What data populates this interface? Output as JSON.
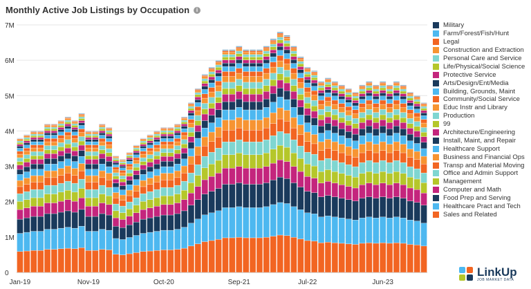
{
  "header": {
    "title": "Monthly Active Job Listings by Occupation",
    "info_icon_glyph": "i"
  },
  "logo": {
    "name": "LinkUp",
    "subtitle": "JOB MARKET DATA"
  },
  "chart_data": {
    "type": "bar",
    "stacked": true,
    "title": "Monthly Active Job Listings by Occupation",
    "xlabel": "",
    "ylabel": "",
    "ylim": [
      0,
      7000000
    ],
    "y_ticks": [
      0,
      1000000,
      2000000,
      3000000,
      4000000,
      5000000,
      6000000,
      7000000
    ],
    "y_tick_labels": [
      "0",
      "1M",
      "2M",
      "3M",
      "4M",
      "5M",
      "6M",
      "7M"
    ],
    "x_tick_labels": [
      {
        "index": 0,
        "label": "Jan-19"
      },
      {
        "index": 10,
        "label": "Nov-19"
      },
      {
        "index": 21,
        "label": "Oct-20"
      },
      {
        "index": 32,
        "label": "Sep-21"
      },
      {
        "index": 42,
        "label": "Jul-22"
      },
      {
        "index": 53,
        "label": "Jun-23"
      }
    ],
    "grid": true,
    "legend_position": "right",
    "categories": [
      "Jan-19",
      "Feb-19",
      "Mar-19",
      "Apr-19",
      "May-19",
      "Jun-19",
      "Jul-19",
      "Aug-19",
      "Sep-19",
      "Oct-19",
      "Nov-19",
      "Dec-19",
      "Jan-20",
      "Feb-20",
      "Mar-20",
      "Apr-20",
      "May-20",
      "Jun-20",
      "Jul-20",
      "Aug-20",
      "Sep-20",
      "Oct-20",
      "Nov-20",
      "Dec-20",
      "Jan-21",
      "Feb-21",
      "Mar-21",
      "Apr-21",
      "May-21",
      "Jun-21",
      "Jul-21",
      "Aug-21",
      "Sep-21",
      "Oct-21",
      "Nov-21",
      "Dec-21",
      "Jan-22",
      "Feb-22",
      "Mar-22",
      "Apr-22",
      "May-22",
      "Jun-22",
      "Jul-22",
      "Aug-22",
      "Sep-22",
      "Oct-22",
      "Nov-22",
      "Dec-22",
      "Jan-23",
      "Feb-23",
      "Mar-23",
      "Apr-23",
      "May-23",
      "Jun-23",
      "Jul-23",
      "Aug-23",
      "Sep-23",
      "Oct-23",
      "Nov-23",
      "Dec-23"
    ],
    "totals": [
      3800000,
      3900000,
      4000000,
      4000000,
      4200000,
      4200000,
      4300000,
      4400000,
      4300000,
      4500000,
      4000000,
      4000000,
      4200000,
      4100000,
      3300000,
      3200000,
      3400000,
      3600000,
      3800000,
      3900000,
      4000000,
      4100000,
      4100000,
      4200000,
      4400000,
      4800000,
      5200000,
      5600000,
      5800000,
      6000000,
      6300000,
      6300000,
      6400000,
      6300000,
      6300000,
      6300000,
      6400000,
      6600000,
      6800000,
      6700000,
      6400000,
      6100000,
      5800000,
      5700000,
      5400000,
      5500000,
      5400000,
      5300000,
      5200000,
      5100000,
      5300000,
      5400000,
      5300000,
      5400000,
      5300000,
      5400000,
      5300000,
      5100000,
      5000000,
      4800000
    ],
    "series": [
      {
        "name": "Sales and Related",
        "color": "#f26522",
        "share": 0.155
      },
      {
        "name": "Healthcare Pract and Tech",
        "color": "#4db8f0",
        "share": 0.135
      },
      {
        "name": "Food Prep and Serving",
        "color": "#1a3a5c",
        "share": 0.105
      },
      {
        "name": "Computer and Math",
        "color": "#c4257d",
        "share": 0.072
      },
      {
        "name": "Management",
        "color": "#b5c72a",
        "share": 0.06
      },
      {
        "name": "Office and Admin Support",
        "color": "#7fd6d1",
        "share": 0.058
      },
      {
        "name": "Transp and Material Moving",
        "color": "#f26522",
        "share": 0.052
      },
      {
        "name": "Business and Financial Ops",
        "color": "#f79432",
        "share": 0.046
      },
      {
        "name": "Healthcare Support",
        "color": "#4db8f0",
        "share": 0.045
      },
      {
        "name": "Install, Maint, and Repair",
        "color": "#1a3a5c",
        "share": 0.037
      },
      {
        "name": "Architecture/Engineering",
        "color": "#c4257d",
        "share": 0.033
      },
      {
        "name": "99",
        "color": "#b5c72a",
        "share": 0.026
      },
      {
        "name": "Production",
        "color": "#7fd6d1",
        "share": 0.028
      },
      {
        "name": "Educ Instr and Library",
        "color": "#f79432",
        "share": 0.026
      },
      {
        "name": "Community/Social Service",
        "color": "#f26522",
        "share": 0.022
      },
      {
        "name": "Building, Grounds, Maint",
        "color": "#4db8f0",
        "share": 0.022
      },
      {
        "name": "Arts/Design/Ent/Media",
        "color": "#1a3a5c",
        "share": 0.016
      },
      {
        "name": "Protective Service",
        "color": "#c4257d",
        "share": 0.014
      },
      {
        "name": "Life/Physical/Social Science",
        "color": "#b5c72a",
        "share": 0.013
      },
      {
        "name": "Personal Care and Service",
        "color": "#7fd6d1",
        "share": 0.011
      },
      {
        "name": "Construction and Extraction",
        "color": "#f79432",
        "share": 0.011
      },
      {
        "name": "Legal",
        "color": "#f26522",
        "share": 0.006
      },
      {
        "name": "Farm/Forest/Fish/Hunt",
        "color": "#4db8f0",
        "share": 0.003
      },
      {
        "name": "Military",
        "color": "#1a3a5c",
        "share": 0.002
      }
    ]
  }
}
